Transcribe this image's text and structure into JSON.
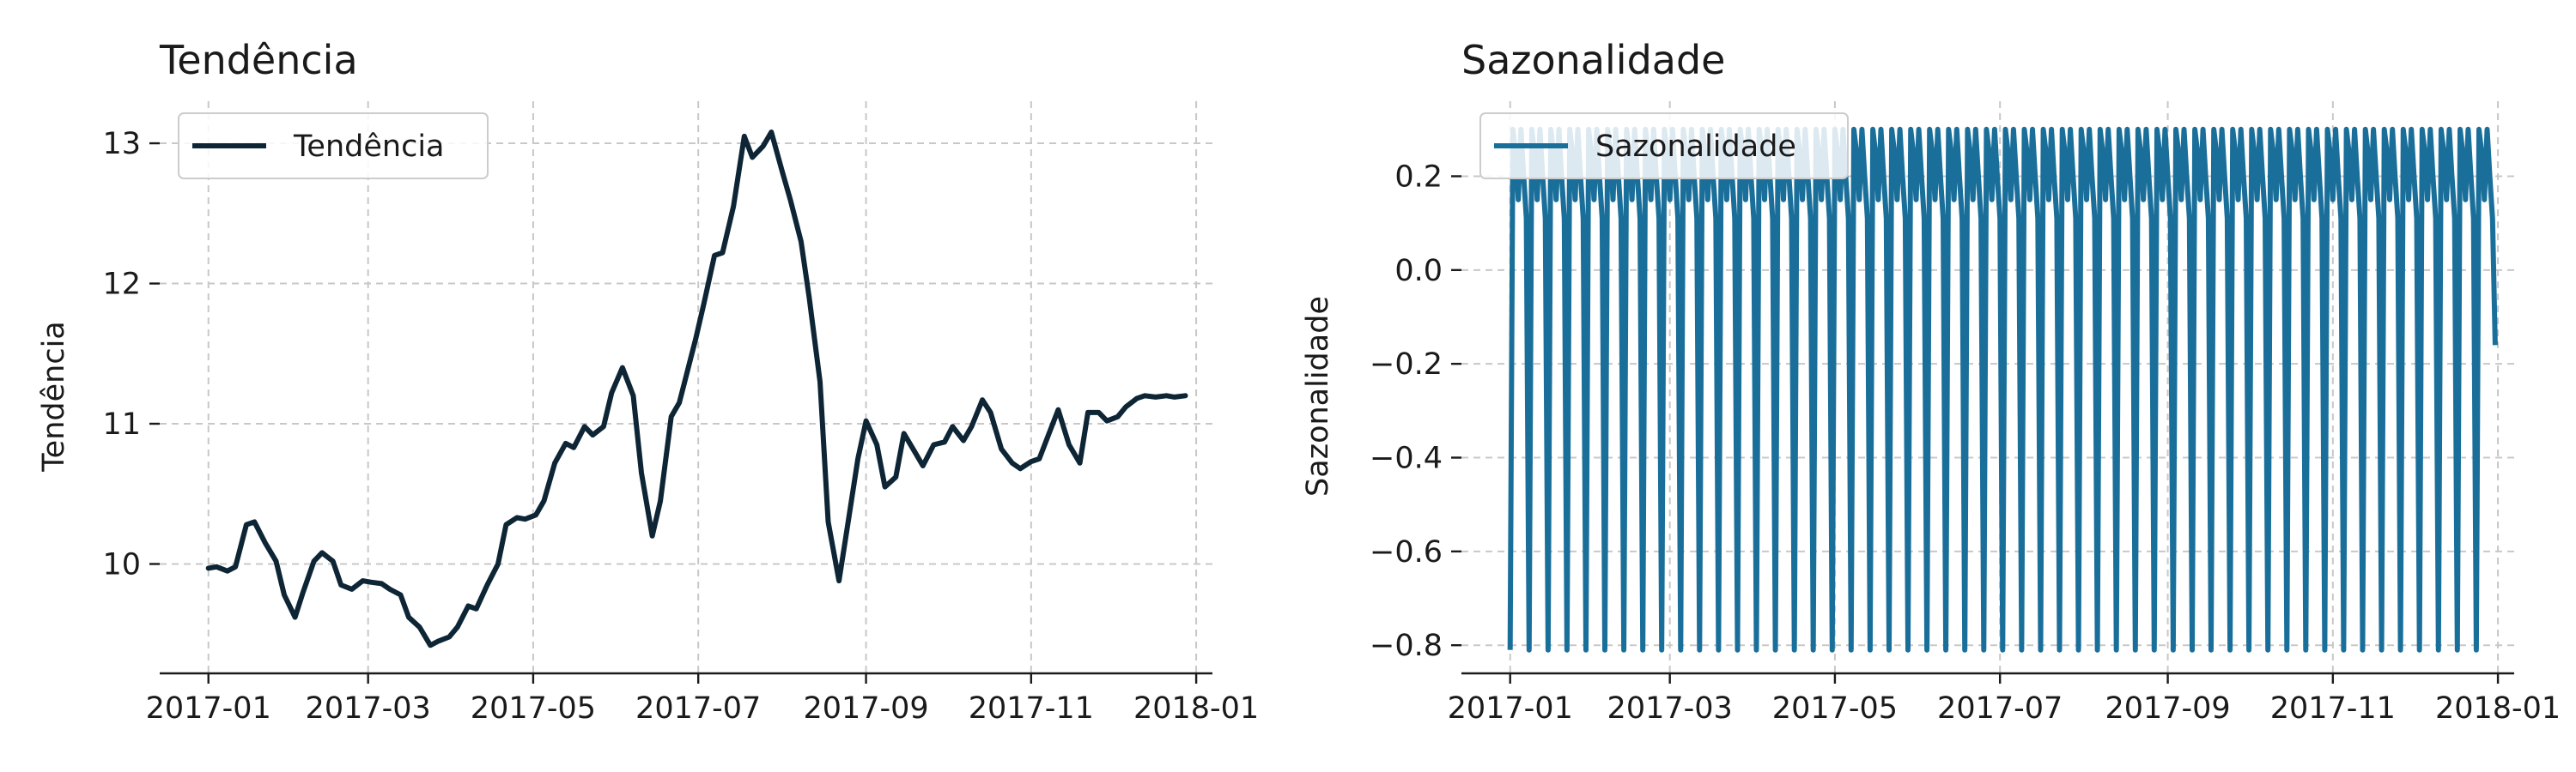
{
  "chart_data": [
    {
      "type": "line",
      "title": "Tendência",
      "xlabel": "",
      "ylabel": "Tendência",
      "xticks": [
        "2017-01",
        "2017-03",
        "2017-05",
        "2017-07",
        "2017-09",
        "2017-11",
        "2018-01"
      ],
      "yticks": [
        "10",
        "11",
        "12",
        "13"
      ],
      "xlim": [
        "2016-12-14",
        "2018-01-07"
      ],
      "ylim": [
        9.22,
        13.3
      ],
      "grid": true,
      "legend_position": "top-left",
      "color": "#0d2535",
      "series": [
        {
          "name": "Tendência",
          "x": [
            "2017-01-01",
            "2017-01-04",
            "2017-01-08",
            "2017-01-11",
            "2017-01-15",
            "2017-01-18",
            "2017-01-22",
            "2017-01-26",
            "2017-01-29",
            "2017-02-02",
            "2017-02-05",
            "2017-02-09",
            "2017-02-12",
            "2017-02-16",
            "2017-02-19",
            "2017-02-23",
            "2017-02-27",
            "2017-03-02",
            "2017-03-06",
            "2017-03-09",
            "2017-03-13",
            "2017-03-16",
            "2017-03-20",
            "2017-03-24",
            "2017-03-27",
            "2017-03-31",
            "2017-04-03",
            "2017-04-07",
            "2017-04-10",
            "2017-04-14",
            "2017-04-18",
            "2017-04-21",
            "2017-04-25",
            "2017-04-28",
            "2017-05-02",
            "2017-05-05",
            "2017-05-09",
            "2017-05-13",
            "2017-05-16",
            "2017-05-20",
            "2017-05-23",
            "2017-05-27",
            "2017-05-30",
            "2017-06-03",
            "2017-06-07",
            "2017-06-10",
            "2017-06-14",
            "2017-06-17",
            "2017-06-21",
            "2017-06-24",
            "2017-06-26",
            "2017-06-28",
            "2017-06-30",
            "2017-07-03",
            "2017-07-07",
            "2017-07-10",
            "2017-07-14",
            "2017-07-18",
            "2017-07-21",
            "2017-07-25",
            "2017-07-28",
            "2017-08-01",
            "2017-08-04",
            "2017-08-08",
            "2017-08-11",
            "2017-08-15",
            "2017-08-18",
            "2017-08-22",
            "2017-08-25",
            "2017-08-29",
            "2017-09-01",
            "2017-09-05",
            "2017-09-08",
            "2017-09-12",
            "2017-09-15",
            "2017-09-19",
            "2017-09-22",
            "2017-09-26",
            "2017-09-30",
            "2017-10-03",
            "2017-10-07",
            "2017-10-10",
            "2017-10-14",
            "2017-10-17",
            "2017-10-21",
            "2017-10-25",
            "2017-10-28",
            "2017-11-01",
            "2017-11-04",
            "2017-11-08",
            "2017-11-11",
            "2017-11-15",
            "2017-11-19",
            "2017-11-22",
            "2017-11-26",
            "2017-11-29",
            "2017-12-03",
            "2017-12-06",
            "2017-12-10",
            "2017-12-13",
            "2017-12-17",
            "2017-12-21",
            "2017-12-24",
            "2017-12-28"
          ],
          "values": [
            9.97,
            9.98,
            9.95,
            9.98,
            10.28,
            10.3,
            10.15,
            10.02,
            9.78,
            9.62,
            9.8,
            10.02,
            10.08,
            10.02,
            9.85,
            9.82,
            9.88,
            9.87,
            9.86,
            9.82,
            9.78,
            9.62,
            9.55,
            9.42,
            9.45,
            9.48,
            9.55,
            9.7,
            9.68,
            9.85,
            10.0,
            10.28,
            10.33,
            10.32,
            10.35,
            10.45,
            10.72,
            10.86,
            10.83,
            10.98,
            10.92,
            10.98,
            11.22,
            11.4,
            11.2,
            10.65,
            10.2,
            10.45,
            11.05,
            11.15,
            11.3,
            11.45,
            11.6,
            11.85,
            12.2,
            12.22,
            12.55,
            13.05,
            12.9,
            12.98,
            13.08,
            12.8,
            12.6,
            12.3,
            11.9,
            11.3,
            10.3,
            9.88,
            10.25,
            10.75,
            11.02,
            10.85,
            10.55,
            10.62,
            10.93,
            10.8,
            10.7,
            10.85,
            10.87,
            10.98,
            10.88,
            10.98,
            11.17,
            11.08,
            10.82,
            10.72,
            10.68,
            10.73,
            10.75,
            10.95,
            11.1,
            10.85,
            10.72,
            11.08,
            11.08,
            11.02,
            11.05,
            11.12,
            11.18,
            11.2,
            11.19,
            11.2,
            11.19,
            11.2
          ]
        }
      ]
    },
    {
      "type": "line",
      "title": "Sazonalidade",
      "xlabel": "",
      "ylabel": "Sazonalidade",
      "xticks": [
        "2017-01",
        "2017-03",
        "2017-05",
        "2017-07",
        "2017-09",
        "2017-11",
        "2018-01"
      ],
      "yticks": [
        "0.2",
        "0.0",
        "−0.2",
        "−0.4",
        "−0.6",
        "−0.8"
      ],
      "xlim": [
        "2016-12-14",
        "2018-01-07"
      ],
      "ylim": [
        -0.86,
        0.36
      ],
      "grid": true,
      "legend_position": "top-left",
      "color": "#1a6f9a",
      "period_days": 7,
      "weekly_pattern": [
        -0.81,
        0.3,
        0.25,
        0.15,
        0.3,
        0.2,
        0.11
      ],
      "series": [
        {
          "name": "Sazonalidade",
          "x_start": "2017-01-01",
          "x_end": "2017-12-31",
          "last_value": -0.16
        }
      ]
    }
  ]
}
